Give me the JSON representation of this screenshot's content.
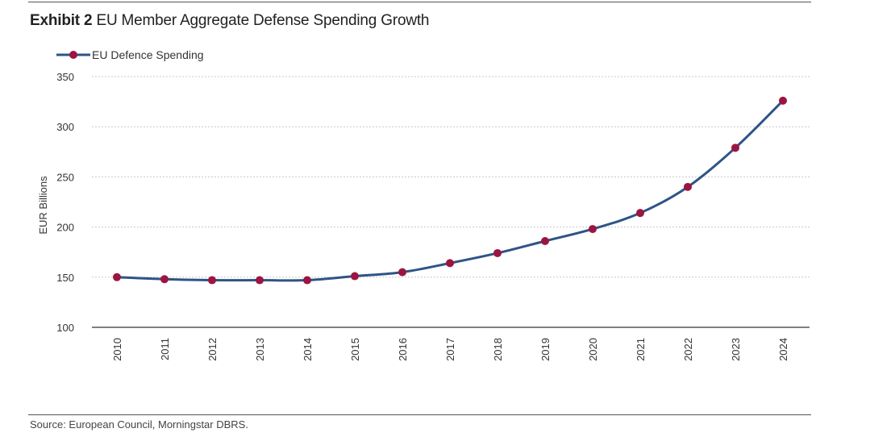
{
  "header": {
    "exhibit_label": "Exhibit 2",
    "title_text": "EU Member Aggregate Defense Spending Growth"
  },
  "footer": {
    "source": "Source: European Council, Morningstar DBRS."
  },
  "colors": {
    "line": "#2e5486",
    "marker": "#9b1540",
    "grid": "#c8c8c8",
    "axis": "#333333"
  },
  "chart_data": {
    "type": "line",
    "title": "Exhibit 2 EU Member Aggregate Defense Spending Growth",
    "xlabel": "",
    "ylabel": "EUR Billions",
    "ylim": [
      100,
      350
    ],
    "yticks": [
      100,
      150,
      200,
      250,
      300,
      350
    ],
    "grid": true,
    "legend_position": "top-left",
    "categories": [
      "2010",
      "2011",
      "2012",
      "2013",
      "2014",
      "2015",
      "2016",
      "2017",
      "2018",
      "2019",
      "2020",
      "2021",
      "2022",
      "2023",
      "2024"
    ],
    "series": [
      {
        "name": "EU Defence Spending",
        "values": [
          150,
          148,
          147,
          147,
          147,
          151,
          155,
          164,
          174,
          186,
          198,
          214,
          240,
          279,
          326
        ]
      }
    ]
  }
}
